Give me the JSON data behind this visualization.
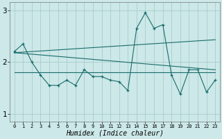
{
  "xlabel": "Humidex (Indice chaleur)",
  "xlim": [
    -0.5,
    23.5
  ],
  "ylim": [
    0.85,
    3.15
  ],
  "yticks": [
    1,
    2,
    3
  ],
  "xticks": [
    0,
    1,
    2,
    3,
    4,
    5,
    6,
    7,
    8,
    9,
    10,
    11,
    12,
    13,
    14,
    15,
    16,
    17,
    18,
    19,
    20,
    21,
    22,
    23
  ],
  "bg_color": "#cce8e8",
  "grid_color": "#aacccc",
  "line_color": "#1a6b6b",
  "x_jagged": [
    0,
    1,
    2,
    3,
    4,
    5,
    6,
    7,
    8,
    9,
    10,
    11,
    12,
    13,
    14,
    15,
    16,
    17,
    18,
    19,
    20,
    21,
    22,
    23
  ],
  "y_jagged": [
    2.2,
    2.35,
    2.0,
    1.75,
    1.55,
    1.55,
    1.65,
    1.55,
    1.85,
    1.72,
    1.72,
    1.65,
    1.62,
    1.45,
    2.65,
    2.95,
    2.65,
    2.72,
    1.75,
    1.38,
    1.85,
    1.85,
    1.42,
    1.65
  ],
  "x_upper_start": 0,
  "y_upper_start": 2.18,
  "x_upper_end": 23,
  "y_upper_end": 2.43,
  "x_lower_start": 0,
  "y_lower_start": 2.18,
  "x_lower_end": 23,
  "y_lower_end": 1.85,
  "x_flat_start": 0,
  "y_flat_start": 1.8,
  "x_flat_end": 23,
  "y_flat_end": 1.8
}
